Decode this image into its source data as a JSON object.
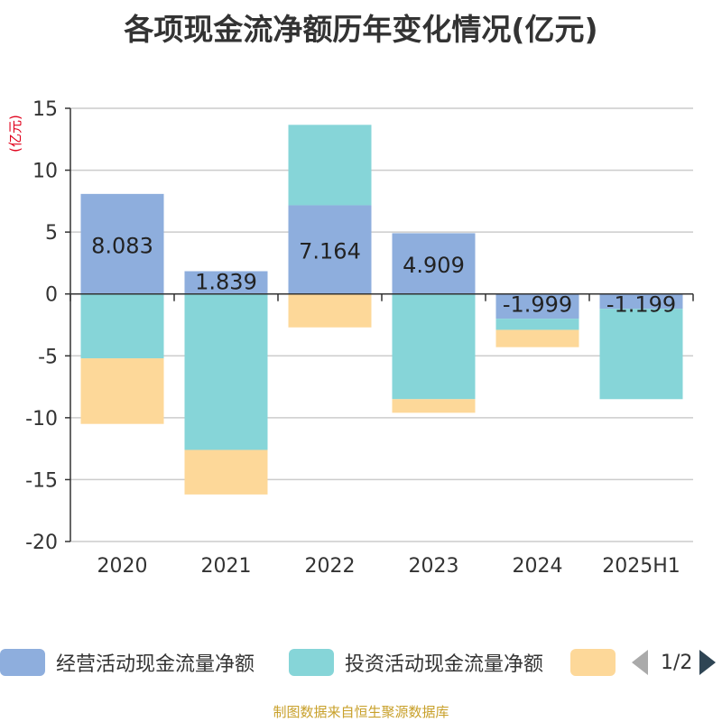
{
  "title": "各项现金流净额历年变化情况(亿元)",
  "source_note": "制图数据来自恒生聚源数据库",
  "legend_page": "1/2",
  "chart_data": {
    "type": "bar",
    "stacked": true,
    "title": "各项现金流净额历年变化情况(亿元)",
    "unit_label": "(亿元)",
    "categories": [
      "2020",
      "2021",
      "2022",
      "2023",
      "2024",
      "2025H1"
    ],
    "ylim": [
      -20,
      15
    ],
    "yticks": [
      15,
      10,
      5,
      0,
      -5,
      -10,
      -15,
      -20
    ],
    "grid": true,
    "legend_position": "bottom",
    "series": [
      {
        "name": "经营活动现金流量净额",
        "color": "#8eaedd",
        "values": [
          8.083,
          1.839,
          7.164,
          4.909,
          -1.999,
          -1.199
        ],
        "labels": [
          "8.083",
          "1.839",
          "7.164",
          "4.909",
          "-1.999",
          "-1.199"
        ]
      },
      {
        "name": "投资活动现金流量净额",
        "color": "#86d5d8",
        "values": [
          -5.2,
          -12.6,
          6.5,
          -8.5,
          -0.9,
          -7.3
        ]
      },
      {
        "name": "",
        "color": "#fdd899",
        "values": [
          -5.3,
          -3.6,
          -2.7,
          -1.1,
          -1.4,
          0
        ]
      }
    ]
  }
}
